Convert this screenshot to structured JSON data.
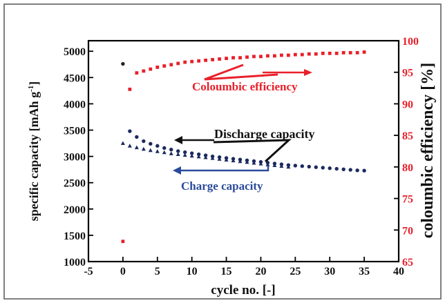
{
  "chart_data": {
    "type": "scatter",
    "xlabel": "cycle no. [-]",
    "ylabel_left": "specific capacity [mAh g",
    "ylabel_left_sup": "-1",
    "ylabel_left_close": "]",
    "ylabel_right": "coloumbic efficiency [%]",
    "xlim": [
      -5,
      40
    ],
    "ylim_left": [
      1000,
      5200
    ],
    "ylim_right": [
      65,
      100
    ],
    "x_ticks": [
      "-5",
      "0",
      "5",
      "10",
      "15",
      "20",
      "25",
      "30",
      "35",
      "40"
    ],
    "y_left_ticks": [
      "1000",
      "1500",
      "2000",
      "2500",
      "3000",
      "3500",
      "4000",
      "4500",
      "5000"
    ],
    "y_right_ticks": [
      "65",
      "70",
      "75",
      "80",
      "85",
      "90",
      "95",
      "100"
    ],
    "colors": {
      "discharge": "#1c2a5e",
      "charge": "#1c2a5e",
      "efficiency": "#e8202a",
      "axis_right": "#e8202a",
      "first_cycle_discharge": "#222222"
    },
    "annotations": {
      "efficiency": "Coloumbic efficiency",
      "discharge": "Discharge capacity",
      "charge": "Charge capacity"
    },
    "series": [
      {
        "name": "Discharge capacity",
        "axis": "left",
        "marker": "circle",
        "x": [
          0,
          1,
          2,
          3,
          4,
          5,
          6,
          7,
          8,
          9,
          10,
          11,
          12,
          13,
          14,
          15,
          16,
          17,
          18,
          19,
          20,
          21,
          22,
          23,
          24,
          25,
          26,
          27,
          28,
          29,
          30,
          31,
          32,
          33,
          34,
          35
        ],
        "y": [
          4760,
          3480,
          3370,
          3290,
          3240,
          3200,
          3160,
          3130,
          3100,
          3080,
          3060,
          3040,
          3020,
          3000,
          2985,
          2970,
          2955,
          2940,
          2925,
          2910,
          2895,
          2880,
          2865,
          2850,
          2835,
          2825,
          2815,
          2805,
          2795,
          2785,
          2775,
          2765,
          2755,
          2745,
          2735,
          2730
        ]
      },
      {
        "name": "Charge capacity",
        "axis": "left",
        "marker": "triangle",
        "x": [
          0,
          1,
          2,
          3,
          4,
          5,
          6,
          7,
          8,
          9,
          10,
          11,
          12,
          13,
          14,
          15,
          16,
          17,
          18,
          19,
          20,
          21,
          22,
          23,
          24
        ],
        "y": [
          3250,
          3200,
          3170,
          3140,
          3115,
          3095,
          3075,
          3055,
          3040,
          3025,
          3010,
          2995,
          2980,
          2965,
          2950,
          2935,
          2920,
          2905,
          2890,
          2875,
          2860,
          2845,
          2830,
          2815,
          2800
        ]
      },
      {
        "name": "Coloumbic efficiency",
        "axis": "right",
        "marker": "square",
        "x": [
          0,
          1,
          2,
          3,
          4,
          5,
          6,
          7,
          8,
          9,
          10,
          11,
          12,
          13,
          14,
          15,
          16,
          17,
          18,
          19,
          20,
          21,
          22,
          23,
          24,
          25,
          26,
          27,
          28,
          29,
          30,
          31,
          32,
          33,
          34,
          35
        ],
        "y": [
          68.2,
          92.3,
          94.9,
          95.2,
          95.5,
          95.8,
          96.0,
          96.2,
          96.4,
          96.6,
          96.7,
          96.8,
          96.9,
          97.0,
          97.1,
          97.2,
          97.3,
          97.3,
          97.4,
          97.5,
          97.5,
          97.6,
          97.6,
          97.7,
          97.7,
          97.8,
          97.8,
          97.9,
          97.9,
          98.0,
          98.0,
          98.0,
          98.1,
          98.1,
          98.1,
          98.2
        ]
      }
    ]
  }
}
